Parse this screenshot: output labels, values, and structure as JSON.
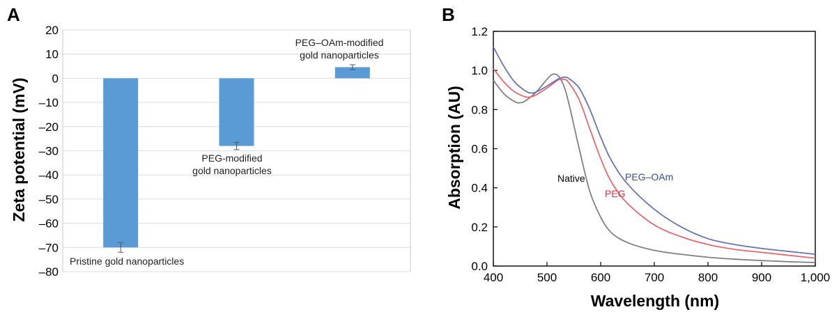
{
  "chart_data": [
    {
      "panel": "A",
      "type": "bar",
      "categories": [
        "Pristine gold nanoparticles",
        "PEG-modified gold nanoparticles",
        "PEG–OAm-modified gold nanoparticles"
      ],
      "values": [
        -70,
        -28,
        4.6
      ],
      "errors": [
        2,
        1.5,
        1
      ],
      "annotations": [
        [
          "Pristine gold nanoparticles"
        ],
        [
          "PEG-modified",
          "gold nanoparticles"
        ],
        [
          "PEG–OAm-modified",
          "gold nanoparticles"
        ]
      ],
      "ylabel": "Zeta potential (mV)",
      "ylim": [
        -80,
        20
      ],
      "yticks": [
        20,
        10,
        0,
        -10,
        -20,
        -30,
        -40,
        -50,
        -60,
        -70,
        -80
      ],
      "ytick_labels": [
        "20",
        "10",
        "0",
        "–10",
        "–20",
        "–30",
        "–40",
        "–50",
        "–60",
        "–70",
        "–80"
      ],
      "grid": true,
      "bar_color": "#5b9bd5"
    },
    {
      "panel": "B",
      "type": "line",
      "xlabel": "Wavelength (nm)",
      "ylabel": "Absorption (AU)",
      "xlim": [
        400,
        1000
      ],
      "ylim": [
        0,
        1.2
      ],
      "xticks": [
        400,
        500,
        600,
        700,
        800,
        900,
        1000
      ],
      "xtick_labels": [
        "400",
        "500",
        "600",
        "700",
        "800",
        "900",
        "1,000"
      ],
      "yticks": [
        0,
        0.2,
        0.4,
        0.6,
        0.8,
        1.0,
        1.2
      ],
      "ytick_labels": [
        "0.0",
        "0.2",
        "0.4",
        "0.6",
        "0.8",
        "1.0",
        "1.2"
      ],
      "series": [
        {
          "name": "Native",
          "color": "#808080",
          "x": [
            400,
            420,
            440,
            450,
            460,
            480,
            500,
            510,
            520,
            530,
            540,
            560,
            580,
            600,
            620,
            650,
            700,
            750,
            800,
            850,
            900,
            950,
            1000
          ],
          "y": [
            0.95,
            0.88,
            0.84,
            0.835,
            0.845,
            0.89,
            0.955,
            0.98,
            0.975,
            0.93,
            0.84,
            0.6,
            0.38,
            0.25,
            0.17,
            0.12,
            0.08,
            0.06,
            0.045,
            0.035,
            0.028,
            0.022,
            0.018
          ]
        },
        {
          "name": "PEG",
          "color": "#e8666e",
          "x": [
            400,
            420,
            440,
            460,
            470,
            480,
            500,
            520,
            530,
            540,
            560,
            580,
            600,
            620,
            650,
            700,
            750,
            800,
            850,
            900,
            950,
            1000
          ],
          "y": [
            1.01,
            0.94,
            0.89,
            0.865,
            0.865,
            0.875,
            0.91,
            0.95,
            0.955,
            0.94,
            0.85,
            0.7,
            0.55,
            0.43,
            0.32,
            0.21,
            0.15,
            0.11,
            0.085,
            0.07,
            0.055,
            0.04
          ]
        },
        {
          "name": "PEG–OAm",
          "color": "#6872b8",
          "x": [
            400,
            420,
            440,
            460,
            470,
            480,
            500,
            520,
            530,
            540,
            560,
            580,
            600,
            620,
            650,
            700,
            750,
            800,
            850,
            900,
            950,
            1000
          ],
          "y": [
            1.12,
            1.02,
            0.94,
            0.895,
            0.885,
            0.89,
            0.92,
            0.955,
            0.965,
            0.96,
            0.91,
            0.8,
            0.66,
            0.54,
            0.42,
            0.29,
            0.2,
            0.14,
            0.11,
            0.09,
            0.075,
            0.06
          ]
        }
      ],
      "curve_labels": [
        "Native",
        "PEG",
        "PEG–OAm"
      ]
    }
  ]
}
